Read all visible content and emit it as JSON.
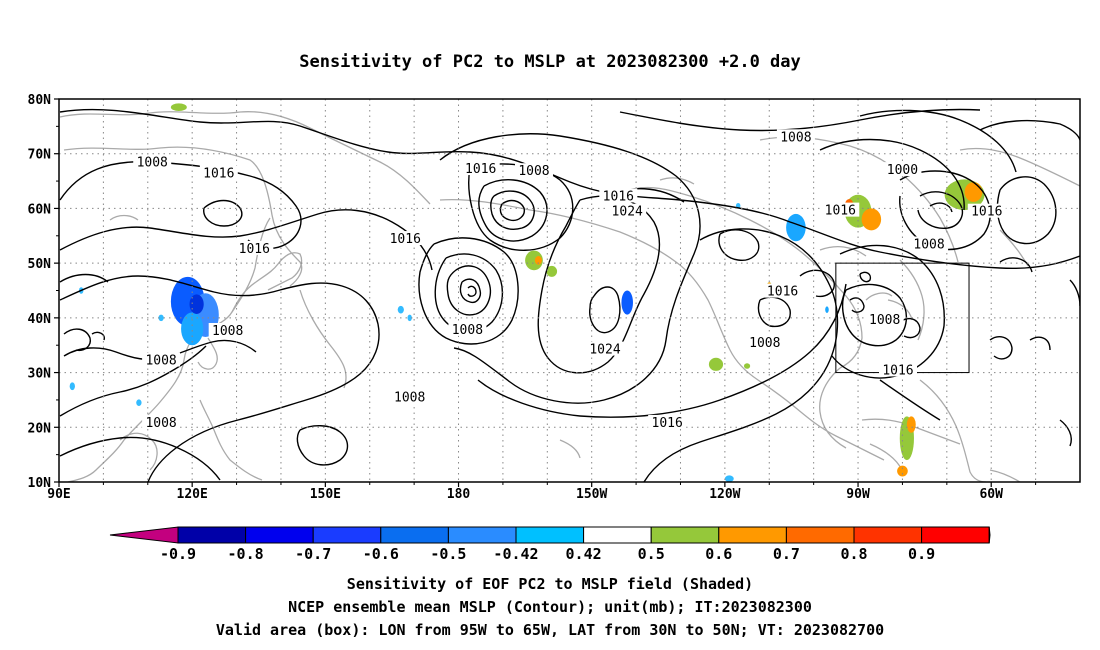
{
  "title": "Sensitivity of PC2 to MSLP at 2023082300 +2.0 day",
  "axes": {
    "lat_labels": [
      "80N",
      "70N",
      "60N",
      "50N",
      "40N",
      "30N",
      "20N",
      "10N"
    ],
    "lon_labels": [
      "90E",
      "120E",
      "150E",
      "180",
      "150W",
      "120W",
      "90W",
      "60W"
    ]
  },
  "contour_labels": [
    {
      "text": "1008",
      "lon": 111,
      "lat": 68.4
    },
    {
      "text": "1016",
      "lon": 126,
      "lat": 66.4
    },
    {
      "text": "1016",
      "lon": 134,
      "lat": 52.6
    },
    {
      "text": "1008",
      "lon": 128,
      "lat": 37.6
    },
    {
      "text": "1008",
      "lon": 113,
      "lat": 32.2
    },
    {
      "text": "1008",
      "lon": 113,
      "lat": 20.8
    },
    {
      "text": "1008",
      "lon": 169,
      "lat": 25.4
    },
    {
      "text": "1016",
      "lon": 168,
      "lat": 54.4
    },
    {
      "text": "1016",
      "lon": 185,
      "lat": 67.2
    },
    {
      "text": "1008",
      "lon": 197,
      "lat": 66.8
    },
    {
      "text": "1016",
      "lon": 216,
      "lat": 62.2
    },
    {
      "text": "1024",
      "lon": 218,
      "lat": 59.4
    },
    {
      "text": "1008",
      "lon": 182,
      "lat": 37.8
    },
    {
      "text": "1024",
      "lon": 213,
      "lat": 34.2
    },
    {
      "text": "1016",
      "lon": 227,
      "lat": 20.8
    },
    {
      "text": "1008",
      "lon": 256,
      "lat": 73.0
    },
    {
      "text": "1000",
      "lon": 280,
      "lat": 67.0
    },
    {
      "text": "1016",
      "lon": 266,
      "lat": 59.6
    },
    {
      "text": "1008",
      "lon": 286,
      "lat": 53.4
    },
    {
      "text": "1016",
      "lon": 299,
      "lat": 59.4
    },
    {
      "text": "1016",
      "lon": 253,
      "lat": 44.8
    },
    {
      "text": "1008",
      "lon": 249,
      "lat": 35.4
    },
    {
      "text": "1008",
      "lon": 276,
      "lat": 39.6
    },
    {
      "text": "1016",
      "lon": 279,
      "lat": 30.4
    }
  ],
  "shading": [
    {
      "lon": 119,
      "lat": 43.0,
      "rx": 3.8,
      "ry": 4.5,
      "color": "#0a5cff"
    },
    {
      "lon": 123,
      "lat": 40.5,
      "rx": 3.0,
      "ry": 4.0,
      "color": "#3b8cff"
    },
    {
      "lon": 120,
      "lat": 38.0,
      "rx": 2.5,
      "ry": 3.0,
      "color": "#1aa7ff"
    },
    {
      "lon": 121,
      "lat": 42.5,
      "rx": 1.6,
      "ry": 1.8,
      "color": "#0033dd"
    },
    {
      "lon": 93,
      "lat": 27.5,
      "rx": 0.6,
      "ry": 0.7,
      "color": "#33bbff"
    },
    {
      "lon": 95,
      "lat": 45.0,
      "rx": 0.5,
      "ry": 0.6,
      "color": "#33bbff"
    },
    {
      "lon": 113,
      "lat": 40.0,
      "rx": 0.6,
      "ry": 0.6,
      "color": "#33bbff"
    },
    {
      "lon": 108,
      "lat": 24.5,
      "rx": 0.6,
      "ry": 0.6,
      "color": "#33bbff"
    },
    {
      "lon": 117,
      "lat": 78.5,
      "rx": 1.8,
      "ry": 0.7,
      "color": "#95c83a"
    },
    {
      "lon": 167,
      "lat": 41.5,
      "rx": 0.7,
      "ry": 0.7,
      "color": "#33bbff"
    },
    {
      "lon": 169,
      "lat": 40.0,
      "rx": 0.5,
      "ry": 0.6,
      "color": "#33bbff"
    },
    {
      "lon": 197,
      "lat": 50.5,
      "rx": 2.0,
      "ry": 1.8,
      "color": "#95c83a"
    },
    {
      "lon": 198,
      "lat": 50.5,
      "rx": 0.8,
      "ry": 0.8,
      "color": "#ff9900"
    },
    {
      "lon": 201,
      "lat": 48.5,
      "rx": 1.2,
      "ry": 1.0,
      "color": "#95c83a"
    },
    {
      "lon": 218,
      "lat": 42.8,
      "rx": 1.3,
      "ry": 2.2,
      "color": "#0a5cff"
    },
    {
      "lon": 241,
      "lat": 10.6,
      "rx": 1.0,
      "ry": 0.6,
      "color": "#33bbff"
    },
    {
      "lon": 256,
      "lat": 56.5,
      "rx": 2.2,
      "ry": 2.5,
      "color": "#1aa7ff"
    },
    {
      "lon": 243,
      "lat": 60.5,
      "rx": 0.5,
      "ry": 0.5,
      "color": "#33bbff"
    },
    {
      "lon": 250,
      "lat": 45.5,
      "rx": 0.7,
      "ry": 1.0,
      "color": "#95c83a"
    },
    {
      "lon": 250,
      "lat": 46.0,
      "rx": 0.4,
      "ry": 0.5,
      "color": "#ff9900"
    },
    {
      "lon": 270,
      "lat": 59.5,
      "rx": 3.0,
      "ry": 3.0,
      "color": "#95c83a"
    },
    {
      "lon": 273,
      "lat": 58.0,
      "rx": 2.2,
      "ry": 2.0,
      "color": "#ff9900"
    },
    {
      "lon": 268,
      "lat": 60.5,
      "rx": 1.0,
      "ry": 1.2,
      "color": "#ff6600"
    },
    {
      "lon": 263,
      "lat": 41.5,
      "rx": 0.4,
      "ry": 0.6,
      "color": "#1aa7ff"
    },
    {
      "lon": 238,
      "lat": 31.5,
      "rx": 1.6,
      "ry": 1.2,
      "color": "#95c83a"
    },
    {
      "lon": 245,
      "lat": 31.2,
      "rx": 0.7,
      "ry": 0.5,
      "color": "#95c83a"
    },
    {
      "lon": 281,
      "lat": 18.0,
      "rx": 1.6,
      "ry": 4.0,
      "color": "#95c83a"
    },
    {
      "lon": 282,
      "lat": 20.5,
      "rx": 1.0,
      "ry": 1.5,
      "color": "#ff9900"
    },
    {
      "lon": 280,
      "lat": 12.0,
      "rx": 1.2,
      "ry": 1.0,
      "color": "#ff9900"
    },
    {
      "lon": 294,
      "lat": 62.5,
      "rx": 4.5,
      "ry": 2.8,
      "color": "#95c83a"
    },
    {
      "lon": 296,
      "lat": 63.0,
      "rx": 2.0,
      "ry": 1.8,
      "color": "#ff9900"
    }
  ],
  "valid_box": {
    "lon_min": 265,
    "lon_max": 295,
    "lat_min": 30,
    "lat_max": 50
  },
  "colorbar": {
    "colors": [
      "#c3007f",
      "#0000a8",
      "#0000ee",
      "#1a3cff",
      "#0a6ef0",
      "#2a8cff",
      "#00c0ff",
      "#ffffff",
      "#95c83a",
      "#ff9900",
      "#ff6a00",
      "#ff3300",
      "#ff0000",
      "#ff9fcf"
    ],
    "labels": [
      "-0.9",
      "-0.8",
      "-0.7",
      "-0.6",
      "-0.5",
      "-0.42",
      "0.42",
      "0.5",
      "0.6",
      "0.7",
      "0.8",
      "0.9"
    ]
  },
  "footer": {
    "line1": "Sensitivity of EOF PC2 to MSLP field (Shaded)",
    "line2": "NCEP ensemble mean MSLP (Contour); unit(mb); IT:2023082300",
    "line3": "Valid area (box): LON from 95W to 65W, LAT from 30N to 50N; VT: 2023082700"
  }
}
